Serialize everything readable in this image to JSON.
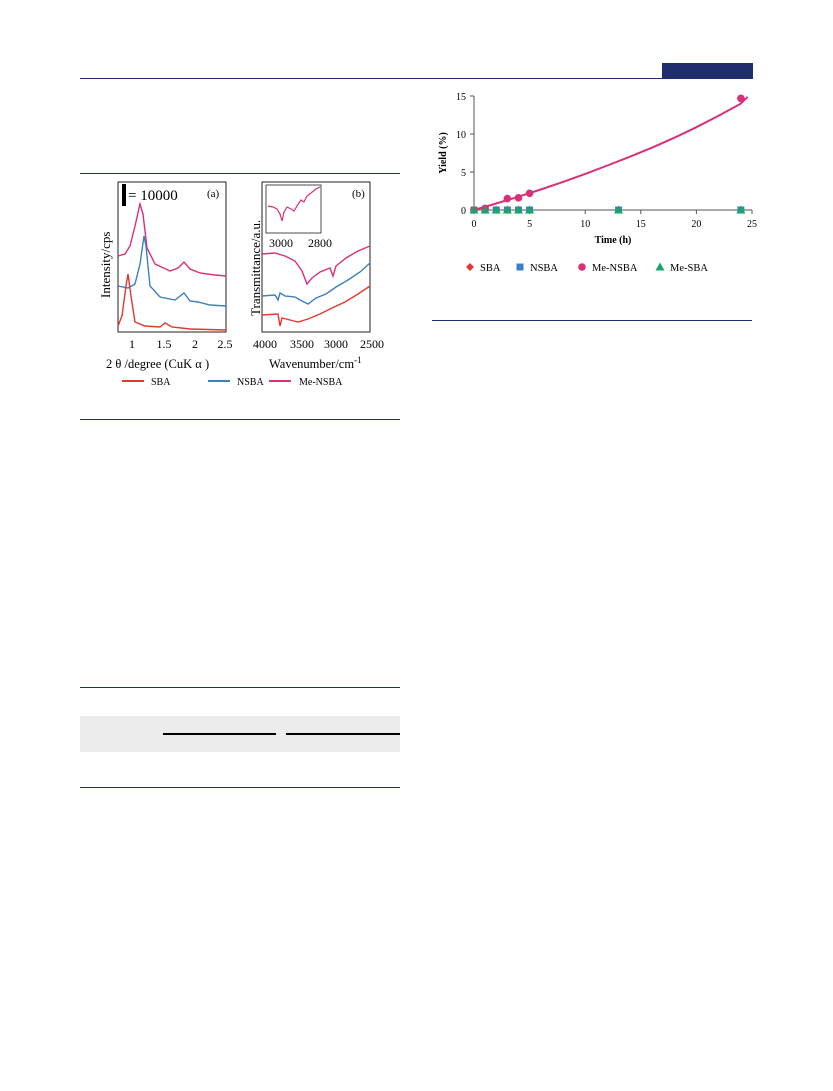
{
  "figure_a": {
    "scale_bar_label": "= 10000",
    "panel_label": "(a)",
    "xlabel": "2 θ /degree (CuK  α )",
    "ylabel": "Intensity/cps",
    "xticks": [
      "1",
      "1.5",
      "2",
      "2.5"
    ]
  },
  "figure_b": {
    "panel_label": "(b)",
    "xlabel": "Wavenumber/cm",
    "xlabel_sup": "-1",
    "ylabel": "Transmittance/a.u.",
    "xticks": [
      "4000",
      "3500",
      "3000",
      "2500"
    ],
    "inset_xticks": [
      "3000",
      "2800"
    ]
  },
  "legend_ab": [
    "SBA",
    "NSBA",
    "Me-NSBA"
  ],
  "colors": {
    "SBA": "#e03a2f",
    "NSBA": "#3b7fc4",
    "Me-NSBA": "#d8307a",
    "Me-SBA": "#1aa36a",
    "header_bar": "#1f2f6e"
  },
  "chart_data": {
    "type": "scatter",
    "xlabel": "Time (h)",
    "ylabel": "Yield (%)",
    "xlim": [
      0,
      25
    ],
    "ylim": [
      0,
      15
    ],
    "xticks": [
      "0",
      "5",
      "10",
      "15",
      "20",
      "25"
    ],
    "yticks": [
      "0",
      "5",
      "10",
      "15"
    ],
    "legend_position": "bottom",
    "series": [
      {
        "name": "SBA",
        "marker": "diamond",
        "x": [
          0,
          1,
          2,
          3,
          4,
          5
        ],
        "y": [
          0,
          0,
          0,
          0,
          0,
          0
        ]
      },
      {
        "name": "NSBA",
        "marker": "square",
        "x": [
          0,
          1,
          2,
          3,
          4,
          5,
          13,
          24
        ],
        "y": [
          0,
          0,
          0,
          0,
          0,
          0,
          0,
          0
        ]
      },
      {
        "name": "Me-NSBA",
        "marker": "circle",
        "x": [
          0,
          1,
          3,
          4,
          5,
          24
        ],
        "y": [
          0,
          0.2,
          1.5,
          1.6,
          2.2,
          14.7
        ]
      },
      {
        "name": "Me-SBA",
        "marker": "triangle",
        "x": [
          0,
          1,
          2,
          3,
          4,
          5,
          13,
          24
        ],
        "y": [
          0,
          0,
          0,
          0,
          0,
          0,
          0,
          0
        ]
      }
    ],
    "fit_curve": {
      "series": "Me-NSBA",
      "x": [
        0,
        2,
        4,
        6,
        8,
        10,
        12,
        14,
        16,
        18,
        20,
        22,
        24,
        24.6
      ],
      "y": [
        0,
        0.85,
        1.75,
        2.7,
        3.7,
        4.75,
        5.85,
        7.0,
        8.2,
        9.5,
        10.9,
        12.4,
        14.0,
        14.9
      ]
    }
  }
}
